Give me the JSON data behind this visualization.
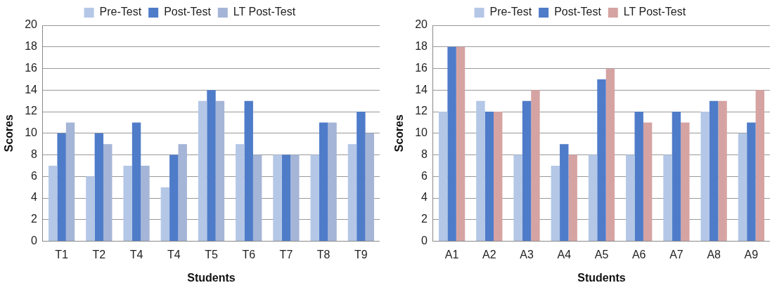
{
  "chart_data": [
    {
      "type": "bar",
      "xlabel": "Students",
      "ylabel": "Scores",
      "categories": [
        "T1",
        "T2",
        "T4",
        "T4",
        "T5",
        "T6",
        "T7",
        "T8",
        "T9"
      ],
      "series": [
        {
          "name": "Pre-Test",
          "color": "#b4c7e7",
          "values": [
            7,
            6,
            7,
            5,
            13,
            9,
            8,
            8,
            9
          ]
        },
        {
          "name": "Post-Test",
          "color": "#4f7cc9",
          "values": [
            10,
            10,
            11,
            8,
            14,
            13,
            8,
            11,
            12
          ]
        },
        {
          "name": "LT Post-Test",
          "color": "#a5b5d7",
          "values": [
            11,
            9,
            7,
            9,
            13,
            8,
            8,
            11,
            10
          ]
        }
      ],
      "ylim": [
        0,
        20
      ],
      "yticks": [
        0,
        2,
        4,
        6,
        8,
        10,
        12,
        14,
        16,
        18,
        20
      ],
      "grid": "y",
      "legend": "top"
    },
    {
      "type": "bar",
      "xlabel": "Students",
      "ylabel": "Scores",
      "categories": [
        "A1",
        "A2",
        "A3",
        "A4",
        "A5",
        "A6",
        "A7",
        "A8",
        "A9"
      ],
      "series": [
        {
          "name": "Pre-Test",
          "color": "#b4c7e7",
          "values": [
            12,
            13,
            8,
            7,
            8,
            8,
            8,
            12,
            10
          ]
        },
        {
          "name": "Post-Test",
          "color": "#4f7cc9",
          "values": [
            18,
            12,
            13,
            9,
            15,
            12,
            12,
            13,
            11
          ]
        },
        {
          "name": "LT Post-Test",
          "color": "#d6a3a3",
          "values": [
            18,
            12,
            14,
            8,
            16,
            11,
            11,
            13,
            14
          ]
        }
      ],
      "ylim": [
        0,
        20
      ],
      "yticks": [
        0,
        2,
        4,
        6,
        8,
        10,
        12,
        14,
        16,
        18,
        20
      ],
      "grid": "y",
      "legend": "top"
    }
  ]
}
